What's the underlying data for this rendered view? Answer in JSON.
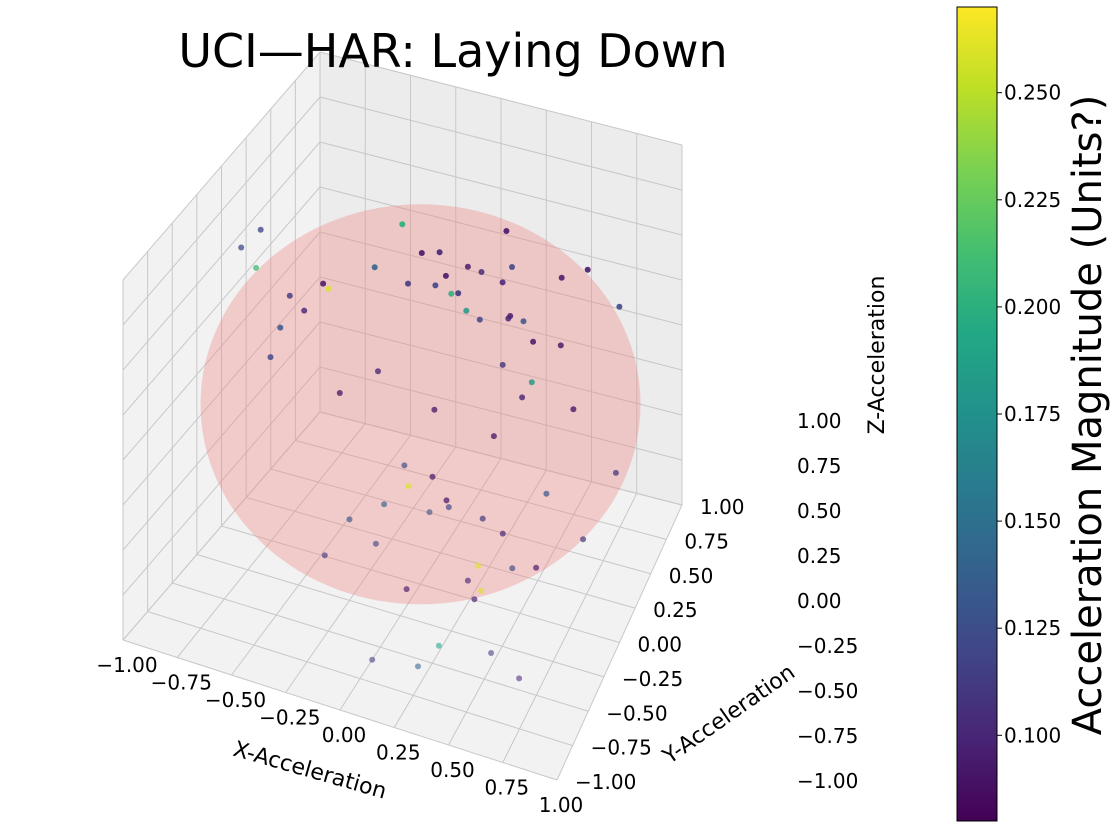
{
  "chart_data": {
    "type": "scatter",
    "title": "UCI—HAR: Laying Down",
    "xlabel": "X-Acceleration",
    "ylabel": "Y-Acceleration",
    "zlabel": "Z-Acceleration",
    "xlim": [
      -1.0,
      1.0
    ],
    "ylim": [
      -1.0,
      1.0
    ],
    "zlim": [
      -1.0,
      1.0
    ],
    "ticks": [
      "−1.00",
      "−0.75",
      "−0.50",
      "−0.25",
      "0.00",
      "0.25",
      "0.50",
      "0.75",
      "1.00"
    ],
    "grid": true,
    "sphere_color": "#f08080",
    "colorbar": {
      "label": "Acceleration Magnitude (Units?)",
      "colormap": "viridis",
      "range": [
        0.08,
        0.27
      ],
      "ticks": [
        "0.100",
        "0.125",
        "0.150",
        "0.175",
        "0.200",
        "0.225",
        "0.250"
      ],
      "tick_values": [
        0.1,
        0.125,
        0.15,
        0.175,
        0.2,
        0.225,
        0.25
      ]
    },
    "points": [
      {
        "x": -0.95,
        "y": 0.1,
        "z": 0.5,
        "mag": 0.12
      },
      {
        "x": -0.9,
        "y": 0.2,
        "z": 0.55,
        "mag": 0.12
      },
      {
        "x": -0.85,
        "y": 0.05,
        "z": 0.45,
        "mag": 0.21
      },
      {
        "x": -0.7,
        "y": 0.45,
        "z": 0.15,
        "mag": 0.09
      },
      {
        "x": -0.6,
        "y": 0.3,
        "z": 0.25,
        "mag": 0.26
      },
      {
        "x": -0.8,
        "y": 0.3,
        "z": 0.15,
        "mag": 0.11
      },
      {
        "x": -0.75,
        "y": 0.35,
        "z": 0.05,
        "mag": 0.1
      },
      {
        "x": -0.5,
        "y": 0.6,
        "z": 0.2,
        "mag": 0.14
      },
      {
        "x": -0.95,
        "y": 0.5,
        "z": -0.2,
        "mag": 0.13
      },
      {
        "x": -0.95,
        "y": 0.4,
        "z": -0.3,
        "mag": 0.12
      },
      {
        "x": -0.4,
        "y": 0.7,
        "z": 0.4,
        "mag": 0.2
      },
      {
        "x": -0.25,
        "y": 0.6,
        "z": 0.35,
        "mag": 0.09
      },
      {
        "x": -0.2,
        "y": 0.7,
        "z": 0.3,
        "mag": 0.1
      },
      {
        "x": -0.3,
        "y": 0.55,
        "z": 0.2,
        "mag": 0.11
      },
      {
        "x": -0.2,
        "y": 0.65,
        "z": 0.15,
        "mag": 0.12
      },
      {
        "x": -0.1,
        "y": 0.55,
        "z": 0.3,
        "mag": 0.09
      },
      {
        "x": -0.05,
        "y": 0.5,
        "z": 0.25,
        "mag": 0.2
      },
      {
        "x": 0.05,
        "y": 0.45,
        "z": 0.22,
        "mag": 0.18
      },
      {
        "x": -0.1,
        "y": 0.7,
        "z": 0.1,
        "mag": 0.11
      },
      {
        "x": 0.1,
        "y": 0.35,
        "z": 0.55,
        "mag": 0.09
      },
      {
        "x": 0.15,
        "y": 0.4,
        "z": 0.5,
        "mag": 0.1
      },
      {
        "x": 0.2,
        "y": 0.6,
        "z": 0.6,
        "mag": 0.09
      },
      {
        "x": 0.25,
        "y": 0.55,
        "z": 0.45,
        "mag": 0.12
      },
      {
        "x": 0.2,
        "y": 0.55,
        "z": 0.35,
        "mag": 0.1
      },
      {
        "x": 0.1,
        "y": 0.5,
        "z": 0.15,
        "mag": 0.12
      },
      {
        "x": 0.3,
        "y": 0.4,
        "z": 0.3,
        "mag": 0.09
      },
      {
        "x": 0.25,
        "y": 0.5,
        "z": 0.2,
        "mag": 0.1
      },
      {
        "x": 0.35,
        "y": 0.45,
        "z": 0.25,
        "mag": 0.13
      },
      {
        "x": 0.4,
        "y": 0.45,
        "z": 0.15,
        "mag": 0.09
      },
      {
        "x": 0.45,
        "y": 0.3,
        "z": 0.05,
        "mag": 0.18
      },
      {
        "x": 0.3,
        "y": 0.3,
        "z": 0.1,
        "mag": 0.11
      },
      {
        "x": 0.55,
        "y": 0.45,
        "z": 0.55,
        "mag": 0.09
      },
      {
        "x": 0.65,
        "y": 0.55,
        "z": 0.55,
        "mag": 0.09
      },
      {
        "x": 0.6,
        "y": 0.3,
        "z": 0.3,
        "mag": 0.09
      },
      {
        "x": 0.8,
        "y": 0.6,
        "z": 0.35,
        "mag": 0.12
      },
      {
        "x": 0.7,
        "y": 0.2,
        "z": 0.05,
        "mag": 0.09
      },
      {
        "x": -0.45,
        "y": 0.1,
        "z": -0.15,
        "mag": 0.09
      },
      {
        "x": -0.3,
        "y": 0.2,
        "z": -0.05,
        "mag": 0.1
      },
      {
        "x": 0.05,
        "y": 0.05,
        "z": -0.05,
        "mag": 0.09
      },
      {
        "x": 0.35,
        "y": 0.05,
        "z": -0.1,
        "mag": 0.09
      },
      {
        "x": 0.4,
        "y": 0.3,
        "z": -0.05,
        "mag": 0.1
      },
      {
        "x": 0.1,
        "y": -0.1,
        "z": -0.3,
        "mag": 0.09
      },
      {
        "x": 0.15,
        "y": -0.05,
        "z": -0.45,
        "mag": 0.09
      },
      {
        "x": 0.2,
        "y": -0.15,
        "z": -0.4,
        "mag": 0.12
      },
      {
        "x": 0.35,
        "y": -0.1,
        "z": -0.45,
        "mag": 0.11
      },
      {
        "x": 0.45,
        "y": -0.1,
        "z": -0.5,
        "mag": 0.1
      },
      {
        "x": 0.65,
        "y": -0.2,
        "z": -0.55,
        "mag": 0.09
      },
      {
        "x": 0.85,
        "y": -0.1,
        "z": -0.4,
        "mag": 0.11
      },
      {
        "x": 0.4,
        "y": -0.3,
        "z": -0.55,
        "mag": 0.26
      },
      {
        "x": 0.45,
        "y": -0.4,
        "z": -0.6,
        "mag": 0.26
      },
      {
        "x": 0.4,
        "y": -0.35,
        "z": -0.7,
        "mag": 0.09
      },
      {
        "x": 0.35,
        "y": -0.3,
        "z": -0.65,
        "mag": 0.1
      },
      {
        "x": 0.55,
        "y": -0.25,
        "z": -0.55,
        "mag": 0.12
      },
      {
        "x": 0.65,
        "y": -0.05,
        "z": -0.25,
        "mag": 0.13
      },
      {
        "x": 0.95,
        "y": 0.1,
        "z": -0.15,
        "mag": 0.11
      },
      {
        "x": 0.2,
        "y": -0.4,
        "z": -0.25,
        "mag": 0.13
      },
      {
        "x": 0.0,
        "y": -0.2,
        "z": -0.2,
        "mag": 0.12
      },
      {
        "x": 0.0,
        "y": -0.15,
        "z": -0.35,
        "mag": 0.26
      },
      {
        "x": -0.1,
        "y": -0.2,
        "z": -0.45,
        "mag": 0.14
      },
      {
        "x": -0.25,
        "y": -0.25,
        "z": -0.55,
        "mag": 0.13
      },
      {
        "x": -0.1,
        "y": -0.3,
        "z": -0.6,
        "mag": 0.12
      },
      {
        "x": 0.05,
        "y": -0.3,
        "z": -0.8,
        "mag": 0.09
      },
      {
        "x": -0.35,
        "y": -0.3,
        "z": -0.75,
        "mag": 0.11
      },
      {
        "x": 0.3,
        "y": -0.55,
        "z": -0.85,
        "mag": 0.19
      },
      {
        "x": 0.55,
        "y": -0.55,
        "z": -0.8,
        "mag": 0.11
      },
      {
        "x": 0.7,
        "y": -0.6,
        "z": -0.85,
        "mag": 0.1
      },
      {
        "x": 0.0,
        "y": -0.6,
        "z": -1.0,
        "mag": 0.11
      },
      {
        "x": 0.2,
        "y": -0.55,
        "z": -1.0,
        "mag": 0.14
      }
    ]
  }
}
